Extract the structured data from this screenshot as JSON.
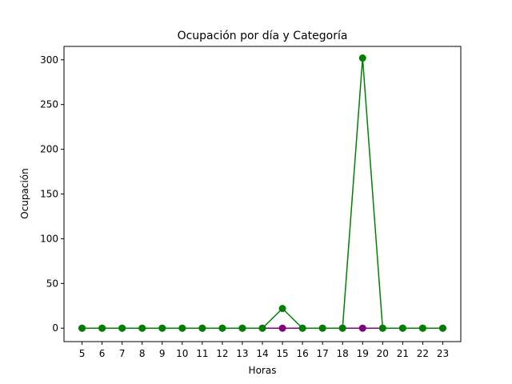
{
  "chart_data": {
    "type": "line",
    "title": "Ocupación por día y Categoría",
    "xlabel": "Horas",
    "ylabel": "Ocupación",
    "x": [
      5,
      6,
      7,
      8,
      9,
      10,
      11,
      12,
      13,
      14,
      15,
      16,
      17,
      18,
      19,
      20,
      21,
      22,
      23
    ],
    "xlim": [
      4.1,
      23.9
    ],
    "ylim": [
      -15,
      315
    ],
    "yticks": [
      0,
      50,
      100,
      150,
      200,
      250,
      300
    ],
    "grid": false,
    "legend": "none",
    "series": [
      {
        "color": "#800080",
        "marker": "circle",
        "values": [
          0,
          0,
          0,
          0,
          0,
          0,
          0,
          0,
          0,
          0,
          0,
          0,
          0,
          0,
          0,
          0,
          0,
          0,
          0
        ]
      },
      {
        "color": "#008000",
        "marker": "circle",
        "values": [
          0,
          0,
          0,
          0,
          0,
          0,
          0,
          0,
          0,
          0,
          22,
          0,
          0,
          0,
          302,
          0,
          0,
          0,
          0
        ]
      }
    ]
  }
}
